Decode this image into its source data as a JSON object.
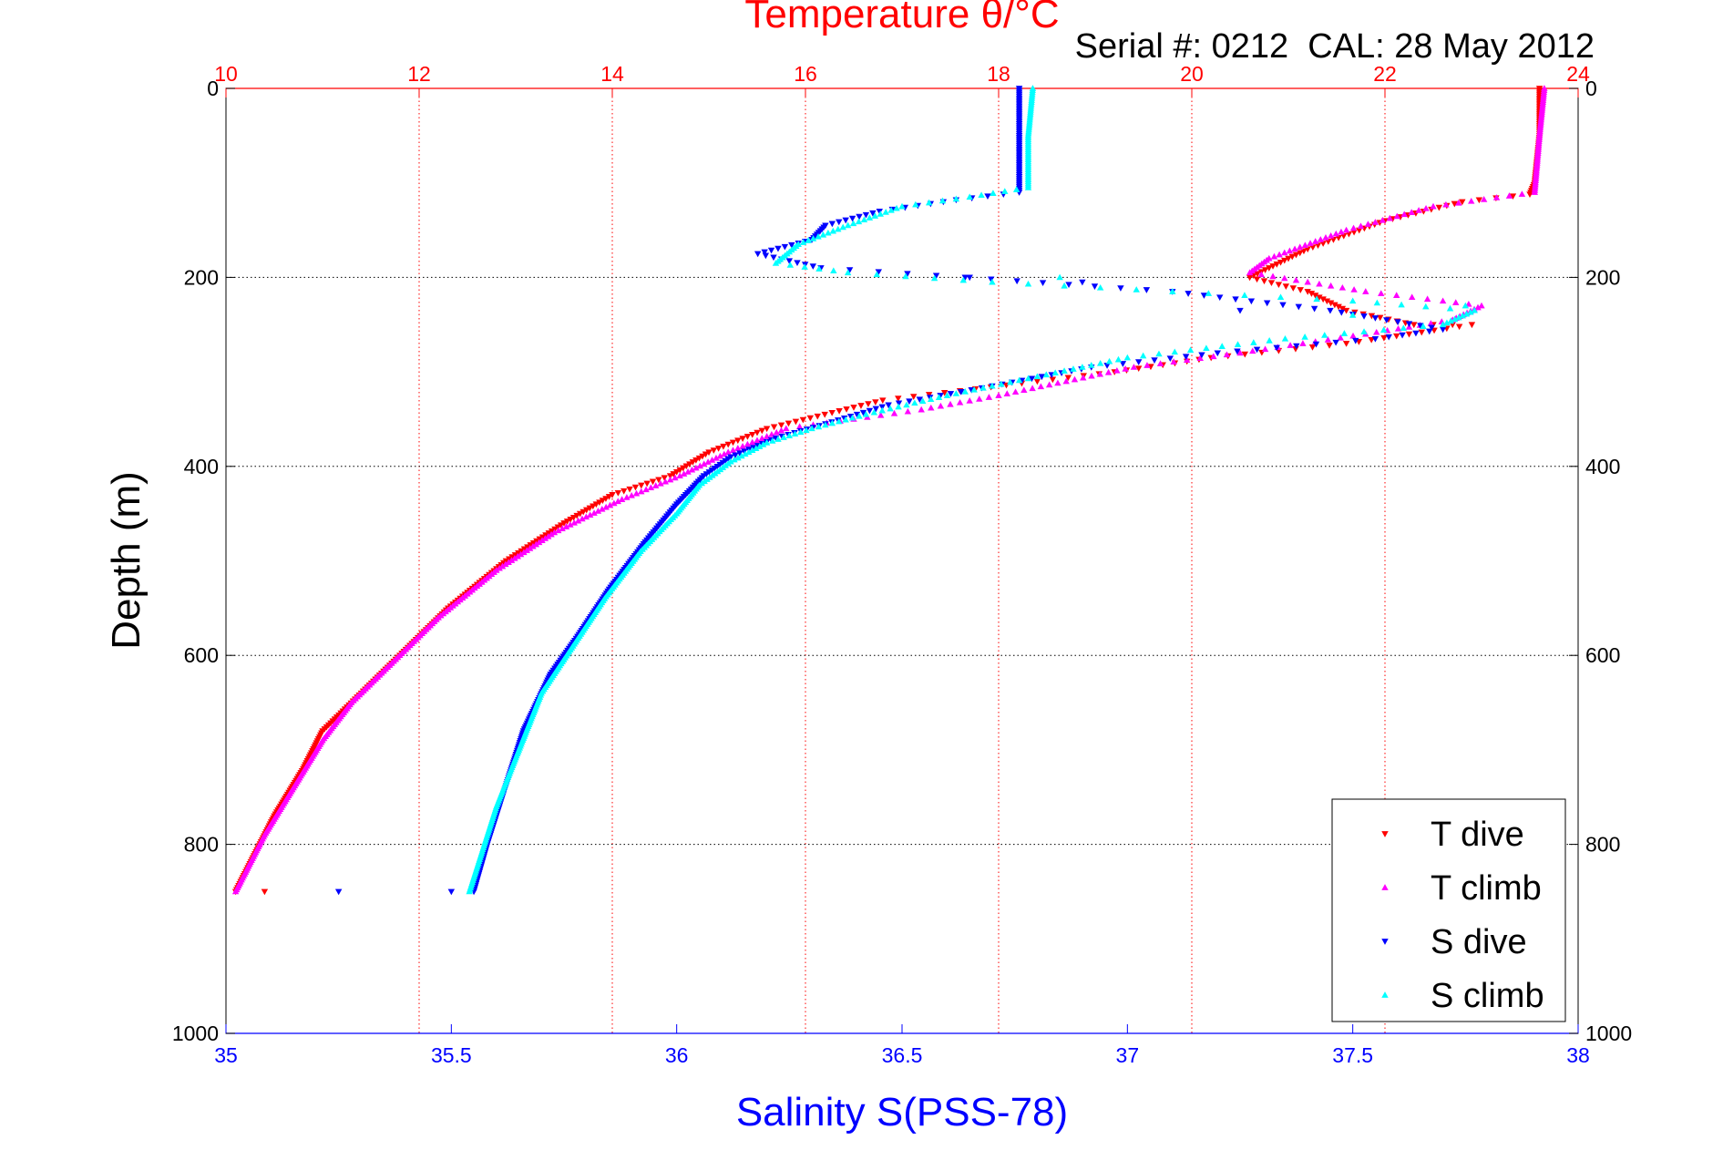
{
  "chart_data": {
    "type": "scatter",
    "title": "Temperature θ/°C",
    "subtitle": "Serial #: 0212  CAL: 28 May 2012",
    "ylabel": "Depth (m)",
    "xlabel": "Salinity S(PSS-78)",
    "x_temp_label": "Temperature θ/°C",
    "ylim": [
      0,
      1000
    ],
    "y_reversed": true,
    "temp_lim": [
      10,
      24
    ],
    "sal_lim": [
      35,
      38
    ],
    "temp_ticks": [
      "10",
      "12",
      "14",
      "16",
      "18",
      "20",
      "22",
      "24"
    ],
    "sal_ticks": [
      "35",
      "35.5",
      "36",
      "36.5",
      "37",
      "37.5",
      "38"
    ],
    "depth_ticks": [
      "0",
      "200",
      "400",
      "600",
      "800",
      "1000"
    ],
    "grid": true,
    "legend_position": "bottom-right",
    "colors": {
      "temp_axis": "#ff0000",
      "sal_axis": "#0000ff",
      "t_dive": "#ff0000",
      "t_climb": "#ff00ff",
      "s_dive": "#0000ff",
      "s_climb": "#00ffff"
    },
    "series": [
      {
        "name": "T dive",
        "axis": "temp",
        "marker": "triangle-down",
        "color": "#ff0000",
        "points": [
          [
            23.6,
            0
          ],
          [
            23.6,
            50
          ],
          [
            23.55,
            100
          ],
          [
            23.5,
            112
          ],
          [
            22.8,
            120
          ],
          [
            22.0,
            140
          ],
          [
            21.2,
            170
          ],
          [
            20.6,
            200
          ],
          [
            21.2,
            215
          ],
          [
            21.6,
            235
          ],
          [
            22.3,
            250
          ],
          [
            22.9,
            250
          ],
          [
            21.6,
            270
          ],
          [
            20.2,
            285
          ],
          [
            19.2,
            300
          ],
          [
            18.4,
            310
          ],
          [
            17.6,
            320
          ],
          [
            16.8,
            330
          ],
          [
            16.2,
            345
          ],
          [
            15.6,
            360
          ],
          [
            15.0,
            385
          ],
          [
            14.6,
            410
          ],
          [
            14.0,
            430
          ],
          [
            13.5,
            460
          ],
          [
            12.9,
            500
          ],
          [
            12.3,
            550
          ],
          [
            11.8,
            600
          ],
          [
            11.4,
            640
          ],
          [
            11.0,
            680
          ],
          [
            10.8,
            720
          ],
          [
            10.5,
            770
          ],
          [
            10.3,
            810
          ],
          [
            10.1,
            850
          ]
        ],
        "outliers": [
          [
            10.4,
            850
          ]
        ]
      },
      {
        "name": "T climb",
        "axis": "temp",
        "marker": "triangle-up",
        "color": "#ff00ff",
        "points": [
          [
            23.65,
            0
          ],
          [
            23.6,
            50
          ],
          [
            23.55,
            110
          ],
          [
            22.5,
            125
          ],
          [
            21.6,
            150
          ],
          [
            20.8,
            180
          ],
          [
            20.6,
            195
          ],
          [
            21.8,
            215
          ],
          [
            22.6,
            225
          ],
          [
            23.0,
            230
          ],
          [
            22.7,
            245
          ],
          [
            21.8,
            260
          ],
          [
            20.5,
            280
          ],
          [
            19.4,
            295
          ],
          [
            18.7,
            310
          ],
          [
            18.0,
            325
          ],
          [
            17.2,
            340
          ],
          [
            16.5,
            350
          ],
          [
            15.8,
            360
          ],
          [
            15.2,
            385
          ],
          [
            14.7,
            410
          ],
          [
            14.1,
            435
          ],
          [
            13.4,
            470
          ],
          [
            12.8,
            510
          ],
          [
            12.2,
            560
          ],
          [
            11.8,
            600
          ],
          [
            11.3,
            650
          ],
          [
            11.0,
            690
          ],
          [
            10.7,
            740
          ],
          [
            10.4,
            790
          ],
          [
            10.1,
            850
          ]
        ]
      },
      {
        "name": "S dive",
        "axis": "sal",
        "marker": "triangle-down",
        "color": "#0000ff",
        "points": [
          [
            36.76,
            0
          ],
          [
            36.76,
            50
          ],
          [
            36.76,
            110
          ],
          [
            36.62,
            118
          ],
          [
            36.45,
            130
          ],
          [
            36.33,
            145
          ],
          [
            36.3,
            160
          ],
          [
            36.18,
            175
          ],
          [
            36.32,
            190
          ],
          [
            36.64,
            200
          ],
          [
            37.1,
            215
          ],
          [
            37.45,
            235
          ],
          [
            37.7,
            255
          ],
          [
            37.55,
            265
          ],
          [
            37.2,
            280
          ],
          [
            36.92,
            295
          ],
          [
            36.7,
            315
          ],
          [
            36.47,
            335
          ],
          [
            36.33,
            355
          ],
          [
            36.22,
            370
          ],
          [
            36.12,
            390
          ],
          [
            36.06,
            410
          ],
          [
            36.0,
            440
          ],
          [
            35.93,
            480
          ],
          [
            35.85,
            530
          ],
          [
            35.78,
            580
          ],
          [
            35.72,
            620
          ],
          [
            35.66,
            680
          ],
          [
            35.62,
            740
          ],
          [
            35.58,
            800
          ],
          [
            35.55,
            850
          ]
        ],
        "outliers": [
          [
            35.5,
            850
          ],
          [
            35.25,
            850
          ],
          [
            36.9,
            205
          ],
          [
            36.65,
            200
          ],
          [
            37.25,
            235
          ]
        ]
      },
      {
        "name": "S climb",
        "axis": "sal",
        "marker": "triangle-up",
        "color": "#00ffff",
        "points": [
          [
            36.79,
            0
          ],
          [
            36.78,
            50
          ],
          [
            36.78,
            105
          ],
          [
            36.65,
            115
          ],
          [
            36.5,
            125
          ],
          [
            36.38,
            145
          ],
          [
            36.27,
            165
          ],
          [
            36.22,
            185
          ],
          [
            36.38,
            195
          ],
          [
            36.7,
            205
          ],
          [
            37.1,
            215
          ],
          [
            37.5,
            225
          ],
          [
            37.77,
            235
          ],
          [
            37.7,
            250
          ],
          [
            37.35,
            265
          ],
          [
            37.0,
            285
          ],
          [
            36.8,
            305
          ],
          [
            36.6,
            325
          ],
          [
            36.42,
            345
          ],
          [
            36.3,
            360
          ],
          [
            36.2,
            375
          ],
          [
            36.12,
            395
          ],
          [
            36.05,
            420
          ],
          [
            36.0,
            450
          ],
          [
            35.92,
            490
          ],
          [
            35.84,
            540
          ],
          [
            35.77,
            590
          ],
          [
            35.7,
            640
          ],
          [
            35.65,
            700
          ],
          [
            35.6,
            760
          ],
          [
            35.56,
            820
          ],
          [
            35.54,
            850
          ]
        ],
        "outliers": [
          [
            36.85,
            200
          ],
          [
            37.5,
            240
          ],
          [
            37.75,
            230
          ]
        ]
      }
    ]
  }
}
